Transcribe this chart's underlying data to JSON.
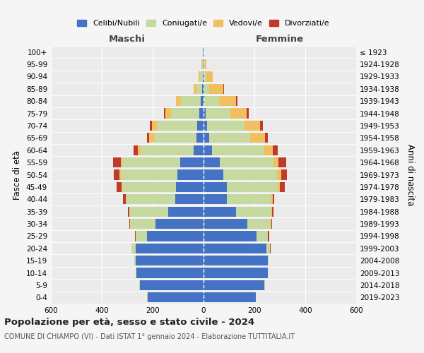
{
  "age_groups": [
    "0-4",
    "5-9",
    "10-14",
    "15-19",
    "20-24",
    "25-29",
    "30-34",
    "35-39",
    "40-44",
    "45-49",
    "50-54",
    "55-59",
    "60-64",
    "65-69",
    "70-74",
    "75-79",
    "80-84",
    "85-89",
    "90-94",
    "95-99",
    "100+"
  ],
  "birth_years": [
    "2019-2023",
    "2014-2018",
    "2009-2013",
    "2004-2008",
    "1999-2003",
    "1994-1998",
    "1989-1993",
    "1984-1988",
    "1979-1983",
    "1974-1978",
    "1969-1973",
    "1964-1968",
    "1959-1963",
    "1954-1958",
    "1949-1953",
    "1944-1948",
    "1939-1943",
    "1934-1938",
    "1929-1933",
    "1924-1928",
    "≤ 1923"
  ],
  "male_celibi": [
    220,
    250,
    265,
    268,
    268,
    222,
    190,
    140,
    112,
    108,
    103,
    92,
    40,
    27,
    24,
    17,
    11,
    5,
    3,
    2,
    2
  ],
  "male_coniugati": [
    2,
    2,
    2,
    4,
    14,
    44,
    98,
    152,
    192,
    212,
    222,
    228,
    208,
    168,
    158,
    112,
    78,
    22,
    12,
    4,
    2
  ],
  "male_vedovi": [
    0,
    0,
    0,
    0,
    0,
    1,
    1,
    1,
    2,
    3,
    5,
    5,
    10,
    18,
    20,
    22,
    18,
    12,
    5,
    2,
    0
  ],
  "male_divorziati": [
    0,
    0,
    0,
    0,
    1,
    3,
    3,
    5,
    12,
    18,
    22,
    30,
    18,
    10,
    8,
    5,
    2,
    1,
    0,
    0,
    0
  ],
  "female_celibi": [
    205,
    240,
    252,
    252,
    248,
    208,
    172,
    128,
    93,
    93,
    78,
    63,
    33,
    21,
    14,
    7,
    4,
    3,
    2,
    1,
    1
  ],
  "female_coniugati": [
    1,
    1,
    2,
    3,
    12,
    44,
    93,
    138,
    173,
    198,
    212,
    213,
    203,
    163,
    148,
    98,
    58,
    20,
    8,
    3,
    1
  ],
  "female_vedovi": [
    0,
    0,
    0,
    1,
    2,
    2,
    2,
    3,
    5,
    10,
    15,
    18,
    35,
    58,
    60,
    65,
    65,
    55,
    25,
    8,
    1
  ],
  "female_divorziati": [
    0,
    0,
    0,
    0,
    2,
    3,
    3,
    5,
    8,
    18,
    22,
    30,
    20,
    12,
    10,
    8,
    5,
    2,
    1,
    0,
    0
  ],
  "colors": {
    "celibi": "#4472c4",
    "coniugati": "#c5d9a0",
    "vedovi": "#f0c060",
    "divorziati": "#c0392b"
  },
  "xlim": 600,
  "title": "Popolazione per età, sesso e stato civile - 2024",
  "subtitle": "COMUNE DI CHIAMPO (VI) - Dati ISTAT 1° gennaio 2024 - Elaborazione TUTTITALIA.IT",
  "ylabel": "Fasce di età",
  "right_ylabel": "Anni di nascita",
  "maschi_label": "Maschi",
  "femmine_label": "Femmine",
  "legend_labels": [
    "Celibi/Nubili",
    "Coniugati/e",
    "Vedovi/e",
    "Divorziati/e"
  ],
  "bg_color": "#f5f5f5",
  "plot_bg": "#ebebeb",
  "grid_color": "#ffffff"
}
